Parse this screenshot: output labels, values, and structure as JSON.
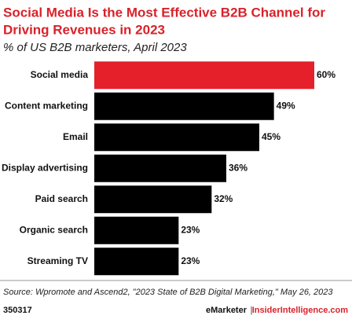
{
  "chart_data": {
    "type": "bar",
    "orientation": "horizontal",
    "title": [
      "Social Media Is the Most Effective B2B Channel for",
      "Driving Revenues in 2023"
    ],
    "subtitle": "% of US B2B marketers, April 2023",
    "categories": [
      "Social media",
      "Content marketing",
      "Email",
      "Display advertising",
      "Paid search",
      "Organic search",
      "Streaming TV"
    ],
    "values": [
      60,
      49,
      45,
      36,
      32,
      23,
      23
    ],
    "value_labels": [
      "60%",
      "49%",
      "45%",
      "36%",
      "32%",
      "23%",
      "23%"
    ],
    "colors": [
      "#e5202b",
      "#000000",
      "#000000",
      "#000000",
      "#000000",
      "#000000",
      "#000000"
    ],
    "source": "Source: Wpromote and Ascend2, \"2023 State of B2B Digital Marketing,\" May 26, 2023",
    "footer": {
      "id": "350317",
      "brand": "eMarketer",
      "separator": "|",
      "site": "InsiderIntelligence.com"
    }
  }
}
